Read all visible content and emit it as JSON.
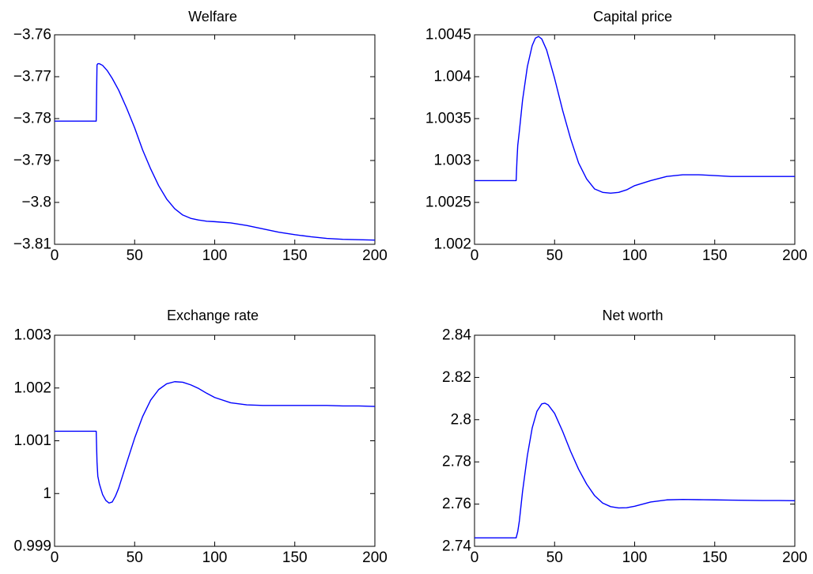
{
  "chart_data": [
    {
      "type": "line",
      "title": "Welfare",
      "xlabel": "",
      "ylabel": "",
      "xlim": [
        0,
        200
      ],
      "ylim": [
        -3.81,
        -3.76
      ],
      "xticks": [
        0,
        50,
        100,
        150,
        200
      ],
      "xtick_labels": [
        "0",
        "50",
        "100",
        "150",
        "200"
      ],
      "yticks": [
        -3.81,
        -3.8,
        -3.79,
        -3.78,
        -3.77,
        -3.76
      ],
      "ytick_labels": [
        "−3.81",
        "−3.8",
        "−3.79",
        "−3.78",
        "−3.77",
        "−3.76"
      ],
      "grid": false,
      "series": [
        {
          "color": "#0000ff",
          "x": [
            0,
            26,
            26.5,
            27,
            28,
            30,
            33,
            36,
            40,
            45,
            50,
            55,
            60,
            65,
            70,
            75,
            80,
            85,
            90,
            95,
            100,
            110,
            120,
            130,
            140,
            150,
            160,
            170,
            180,
            190,
            200
          ],
          "y": [
            -3.7806,
            -3.7806,
            -3.7672,
            -3.7669,
            -3.7669,
            -3.7673,
            -3.7686,
            -3.7704,
            -3.7732,
            -3.7775,
            -3.7822,
            -3.7875,
            -3.792,
            -3.796,
            -3.7992,
            -3.8015,
            -3.803,
            -3.8038,
            -3.8042,
            -3.8045,
            -3.8046,
            -3.8049,
            -3.8055,
            -3.8063,
            -3.8071,
            -3.8077,
            -3.8082,
            -3.8086,
            -3.8088,
            -3.8089,
            -3.809
          ]
        }
      ]
    },
    {
      "type": "line",
      "title": "Capital price",
      "xlabel": "",
      "ylabel": "",
      "xlim": [
        0,
        200
      ],
      "ylim": [
        1.002,
        1.0045
      ],
      "xticks": [
        0,
        50,
        100,
        150,
        200
      ],
      "xtick_labels": [
        "0",
        "50",
        "100",
        "150",
        "200"
      ],
      "yticks": [
        1.002,
        1.0025,
        1.003,
        1.0035,
        1.004,
        1.0045
      ],
      "ytick_labels": [
        "1.002",
        "1.0025",
        "1.003",
        "1.0035",
        "1.004",
        "1.0045"
      ],
      "grid": false,
      "series": [
        {
          "color": "#0000ff",
          "x": [
            0,
            26,
            26.5,
            27,
            28,
            30,
            33,
            36,
            38,
            40,
            42,
            45,
            50,
            55,
            60,
            65,
            70,
            75,
            80,
            85,
            90,
            95,
            100,
            110,
            120,
            130,
            140,
            150,
            160,
            170,
            180,
            190,
            200
          ],
          "y": [
            1.00276,
            1.00276,
            1.003,
            1.00318,
            1.00335,
            1.00372,
            1.00412,
            1.00437,
            1.00446,
            1.00448,
            1.00445,
            1.00432,
            1.00398,
            1.0036,
            1.00326,
            1.00297,
            1.00278,
            1.00266,
            1.00262,
            1.00261,
            1.00262,
            1.00265,
            1.0027,
            1.00276,
            1.00281,
            1.00283,
            1.00283,
            1.00282,
            1.00281,
            1.00281,
            1.00281,
            1.00281,
            1.00281
          ]
        }
      ]
    },
    {
      "type": "line",
      "title": "Exchange rate",
      "xlabel": "",
      "ylabel": "",
      "xlim": [
        0,
        200
      ],
      "ylim": [
        0.999,
        1.003
      ],
      "xticks": [
        0,
        50,
        100,
        150,
        200
      ],
      "xtick_labels": [
        "0",
        "50",
        "100",
        "150",
        "200"
      ],
      "yticks": [
        0.999,
        1.0,
        1.001,
        1.002,
        1.003
      ],
      "ytick_labels": [
        "0.999",
        "1",
        "1.001",
        "1.002",
        "1.003"
      ],
      "grid": false,
      "series": [
        {
          "color": "#0000ff",
          "x": [
            0,
            26,
            26.5,
            27,
            28,
            30,
            32,
            34,
            36,
            38,
            40,
            45,
            50,
            55,
            60,
            65,
            70,
            75,
            80,
            85,
            90,
            95,
            100,
            110,
            120,
            130,
            140,
            150,
            160,
            170,
            180,
            190,
            200
          ],
          "y": [
            1.00118,
            1.00118,
            1.0006,
            1.00033,
            1.00018,
            0.99998,
            0.99987,
            0.99982,
            0.99984,
            0.99995,
            1.0001,
            1.00058,
            1.00105,
            1.00146,
            1.00177,
            1.00197,
            1.00208,
            1.00212,
            1.00211,
            1.00206,
            1.00199,
            1.0019,
            1.00182,
            1.00172,
            1.00168,
            1.00167,
            1.00167,
            1.00167,
            1.00167,
            1.00167,
            1.00166,
            1.00166,
            1.00165
          ]
        }
      ]
    },
    {
      "type": "line",
      "title": "Net worth",
      "xlabel": "",
      "ylabel": "",
      "xlim": [
        0,
        200
      ],
      "ylim": [
        2.74,
        2.84
      ],
      "xticks": [
        0,
        50,
        100,
        150,
        200
      ],
      "xtick_labels": [
        "0",
        "50",
        "100",
        "150",
        "200"
      ],
      "yticks": [
        2.74,
        2.76,
        2.78,
        2.8,
        2.82,
        2.84
      ],
      "ytick_labels": [
        "2.74",
        "2.76",
        "2.78",
        "2.8",
        "2.82",
        "2.84"
      ],
      "grid": false,
      "series": [
        {
          "color": "#0000ff",
          "x": [
            0,
            26,
            27,
            28,
            30,
            33,
            36,
            39,
            42,
            44,
            46,
            50,
            55,
            60,
            65,
            70,
            75,
            80,
            85,
            90,
            95,
            100,
            110,
            120,
            130,
            140,
            150,
            160,
            170,
            180,
            190,
            200
          ],
          "y": [
            2.744,
            2.744,
            2.747,
            2.752,
            2.766,
            2.783,
            2.796,
            2.804,
            2.8075,
            2.8078,
            2.807,
            2.803,
            2.7945,
            2.785,
            2.7765,
            2.7695,
            2.764,
            2.7605,
            2.7588,
            2.7582,
            2.7583,
            2.759,
            2.761,
            2.762,
            2.7622,
            2.7621,
            2.762,
            2.7619,
            2.7618,
            2.7617,
            2.7617,
            2.7616
          ]
        }
      ]
    }
  ]
}
